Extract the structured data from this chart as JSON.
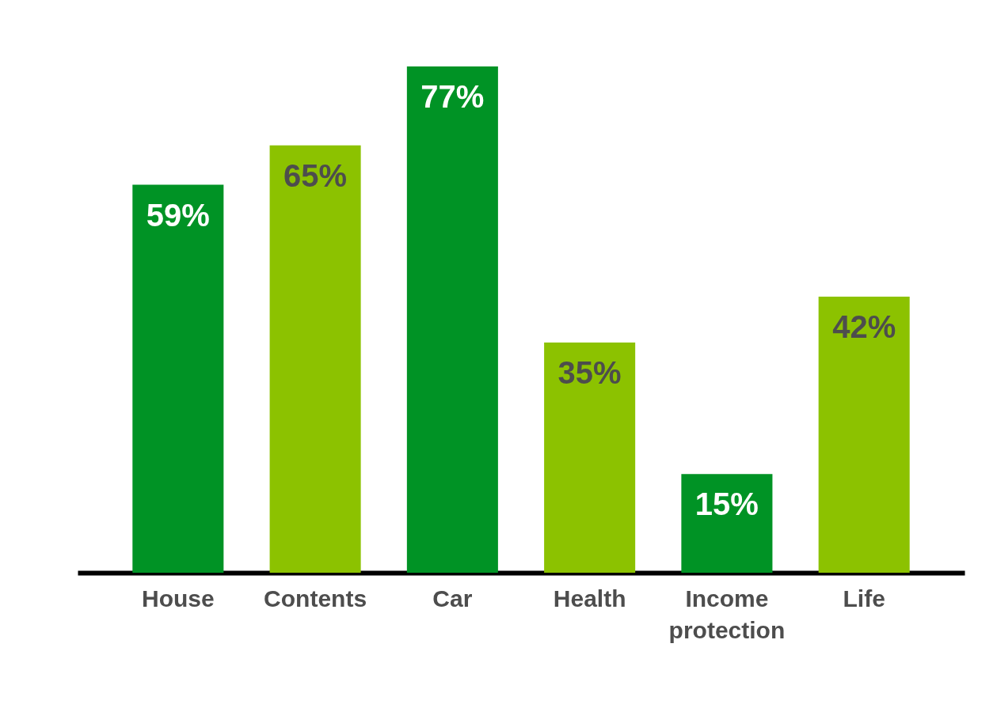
{
  "chart_data": {
    "type": "bar",
    "categories": [
      "House",
      "Contents",
      "Car",
      "Health",
      "Income protection",
      "Life"
    ],
    "values": [
      59,
      65,
      77,
      35,
      15,
      42
    ],
    "colors": [
      "#009325",
      "#8cc200",
      "#009325",
      "#8cc200",
      "#009325",
      "#8cc200"
    ],
    "value_labels": [
      "59%",
      "65%",
      "77%",
      "35%",
      "15%",
      "42%"
    ]
  }
}
